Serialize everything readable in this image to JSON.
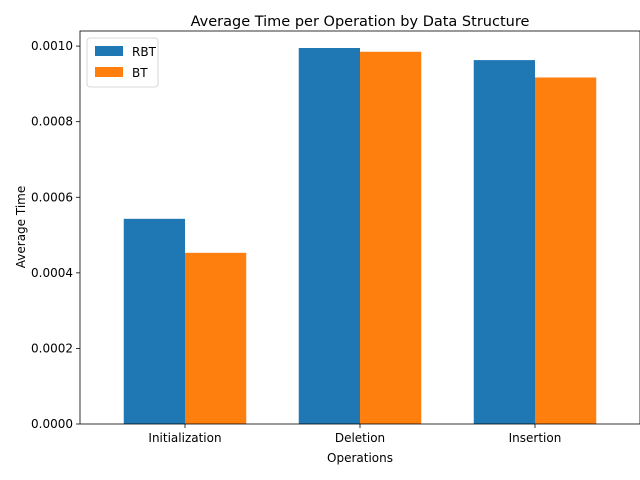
{
  "chart_data": {
    "type": "bar",
    "title": "Average Time per Operation by Data Structure",
    "xlabel": "Operations",
    "ylabel": "Average Time",
    "categories": [
      "Initialization",
      "Deletion",
      "Insertion"
    ],
    "series": [
      {
        "name": "RBT",
        "color": "#1f77b4",
        "values": [
          0.000543,
          0.000995,
          0.000963
        ]
      },
      {
        "name": "BT",
        "color": "#ff7f0e",
        "values": [
          0.000453,
          0.000985,
          0.000917
        ]
      }
    ],
    "ylim": [
      0,
      0.00104
    ],
    "yticks": [
      0.0,
      0.0002,
      0.0004,
      0.0006,
      0.0008,
      0.001
    ],
    "ytick_labels": [
      "0.0000",
      "0.0002",
      "0.0004",
      "0.0006",
      "0.0008",
      "0.0010"
    ],
    "grid": false,
    "legend": "top-left"
  }
}
